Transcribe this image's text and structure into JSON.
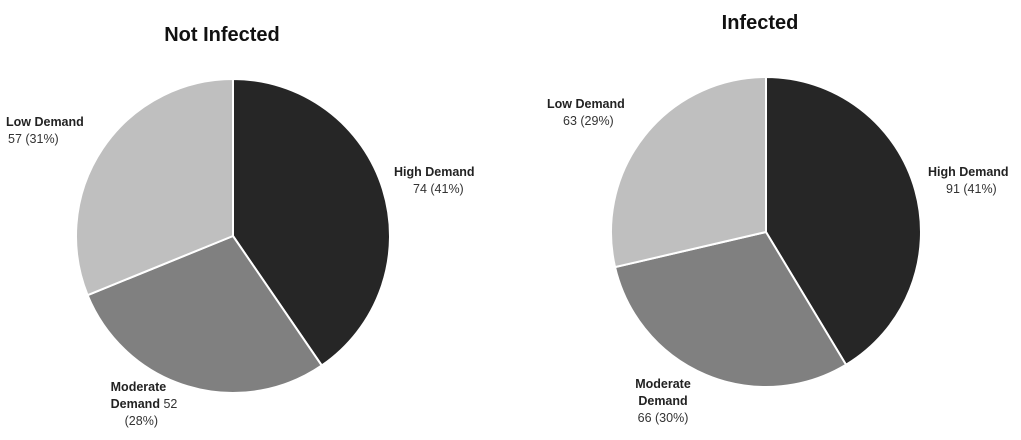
{
  "chart_data": [
    {
      "type": "pie",
      "title": "Not Infected",
      "slices": [
        {
          "name": "High Demand",
          "value": 74,
          "percent": "41%",
          "value_label": "74 (41%)",
          "color": "#262626"
        },
        {
          "name": "Moderate Demand",
          "value": 52,
          "percent": "28%",
          "name_line1": "Moderate",
          "name_line2": "Demand",
          "value_inline": "52",
          "percent_label": "(28%)",
          "color": "#808080"
        },
        {
          "name": "Low Demand",
          "value": 57,
          "percent": "31%",
          "value_label": "57 (31%)",
          "color": "#bfbfbf"
        }
      ]
    },
    {
      "type": "pie",
      "title": "Infected",
      "slices": [
        {
          "name": "High Demand",
          "value": 91,
          "percent": "41%",
          "value_label": "91 (41%)",
          "color": "#262626"
        },
        {
          "name": "Moderate Demand",
          "value": 66,
          "percent": "30%",
          "name_line1": "Moderate",
          "name_line2": "Demand",
          "value_label": "66 (30%)",
          "color": "#808080"
        },
        {
          "name": "Low Demand",
          "value": 63,
          "percent": "29%",
          "value_label": "63 (29%)",
          "color": "#bfbfbf"
        }
      ]
    }
  ]
}
